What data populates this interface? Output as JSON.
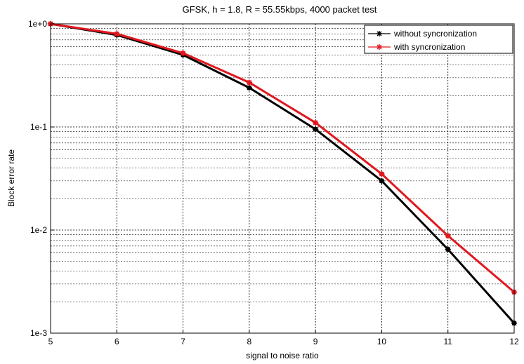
{
  "chart_data": {
    "type": "line",
    "title": "GFSK, h = 1.8, R = 55.55kbps, 4000 packet test",
    "xlabel": "signal to noise ratio",
    "ylabel": "Block error rate",
    "x": [
      5,
      6,
      7,
      8,
      9,
      10,
      11,
      12
    ],
    "xlim": [
      5,
      12
    ],
    "ylim": [
      0.001,
      1
    ],
    "yscale": "log",
    "grid": true,
    "legend_position": "top-right",
    "x_tick_labels": [
      "5",
      "6",
      "7",
      "8",
      "9",
      "10",
      "11",
      "12"
    ],
    "y_ticks": [
      {
        "value": 1,
        "label": "1e+0"
      },
      {
        "value": 0.1,
        "label": "1e-1"
      },
      {
        "value": 0.01,
        "label": "1e-2"
      },
      {
        "value": 0.001,
        "label": "1e-3"
      }
    ],
    "series": [
      {
        "name": "without syncronization",
        "color": "#000000",
        "marker": "asterisk",
        "values": [
          1.0,
          0.78,
          0.5,
          0.24,
          0.095,
          0.03,
          0.0065,
          0.00125
        ]
      },
      {
        "name": "with syncronization",
        "color": "#e0181e",
        "marker": "asterisk",
        "values": [
          1.0,
          0.8,
          0.52,
          0.27,
          0.11,
          0.035,
          0.0088,
          0.0025
        ]
      }
    ]
  }
}
